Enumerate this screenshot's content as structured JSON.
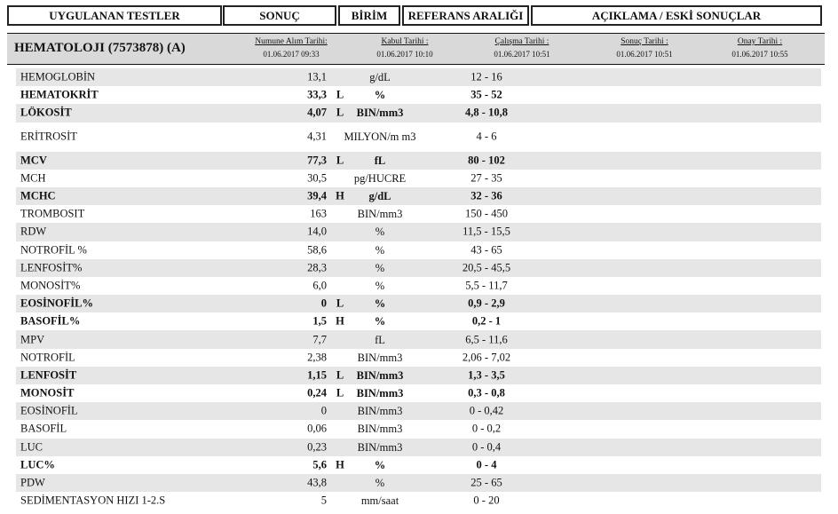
{
  "header": {
    "test": "UYGULANAN TESTLER",
    "result": "SONUÇ",
    "unit": "BİRİM",
    "reference": "REFERANS ARALIĞI",
    "notes": "AÇIKLAMA / ESKİ SONUÇLAR"
  },
  "panel": {
    "title": "HEMATOLOJI (7573878) (A)",
    "dates": [
      {
        "label": "Numune Alım Tarihi:",
        "value": "01.06.2017 09:33"
      },
      {
        "label": "Kabul Tarihi :",
        "value": "01.06.2017 10:10"
      },
      {
        "label": "Çalışma Tarihi :",
        "value": "01.06.2017 10:51"
      },
      {
        "label": "Sonuç Tarihi :",
        "value": "01.06.2017 10:51"
      },
      {
        "label": "Onay Tarihi :",
        "value": "01.06.2017 10:55"
      }
    ]
  },
  "rows": [
    {
      "name": "HEMOGLOBİN",
      "value": "13,1",
      "flag": "",
      "unit": "g/dL",
      "ref": "12 -  16"
    },
    {
      "name": "HEMATOKRİT",
      "value": "33,3",
      "flag": "L",
      "unit": "%",
      "ref": "35 -  52"
    },
    {
      "name": "LÖKOSİT",
      "value": "4,07",
      "flag": "L",
      "unit": "BIN/mm3",
      "ref": "4,8 -  10,8"
    },
    {
      "name": "ERİTROSİT",
      "value": "4,31",
      "flag": "",
      "unit": "MILYON/m m3",
      "ref": "4 -  6"
    },
    {
      "name": "MCV",
      "value": "77,3",
      "flag": "L",
      "unit": "fL",
      "ref": "80 -  102"
    },
    {
      "name": "MCH",
      "value": "30,5",
      "flag": "",
      "unit": "pg/HUCRE",
      "ref": "27 -  35"
    },
    {
      "name": "MCHC",
      "value": "39,4",
      "flag": "H",
      "unit": "g/dL",
      "ref": "32 -  36"
    },
    {
      "name": "TROMBOSIT",
      "value": "163",
      "flag": "",
      "unit": "BIN/mm3",
      "ref": "150 -  450"
    },
    {
      "name": "RDW",
      "value": "14,0",
      "flag": "",
      "unit": "%",
      "ref": "11,5 -  15,5"
    },
    {
      "name": "NOTROFİL %",
      "value": "58,6",
      "flag": "",
      "unit": "%",
      "ref": "43 -  65"
    },
    {
      "name": "LENFOSİT%",
      "value": "28,3",
      "flag": "",
      "unit": "%",
      "ref": "20,5 -  45,5"
    },
    {
      "name": "MONOSİT%",
      "value": "6,0",
      "flag": "",
      "unit": "%",
      "ref": "5,5 -  11,7"
    },
    {
      "name": "EOSİNOFİL%",
      "value": "0",
      "flag": "L",
      "unit": "%",
      "ref": "0,9 -  2,9"
    },
    {
      "name": "BASOFİL%",
      "value": "1,5",
      "flag": "H",
      "unit": "%",
      "ref": "0,2 -  1"
    },
    {
      "name": "MPV",
      "value": "7,7",
      "flag": "",
      "unit": "fL",
      "ref": "6,5 -  11,6"
    },
    {
      "name": "NOTROFİL",
      "value": "2,38",
      "flag": "",
      "unit": "BIN/mm3",
      "ref": "2,06 -  7,02"
    },
    {
      "name": "LENFOSİT",
      "value": "1,15",
      "flag": "L",
      "unit": "BIN/mm3",
      "ref": "1,3 -  3,5"
    },
    {
      "name": "MONOSİT",
      "value": "0,24",
      "flag": "L",
      "unit": "BIN/mm3",
      "ref": "0,3 -  0,8"
    },
    {
      "name": "EOSİNOFİL",
      "value": "0",
      "flag": "",
      "unit": "BIN/mm3",
      "ref": "0 -  0,42"
    },
    {
      "name": "BASOFİL",
      "value": "0,06",
      "flag": "",
      "unit": "BIN/mm3",
      "ref": "0 -  0,2"
    },
    {
      "name": "LUC",
      "value": "0,23",
      "flag": "",
      "unit": "BIN/mm3",
      "ref": "0 -  0,4"
    },
    {
      "name": "LUC%",
      "value": "5,6",
      "flag": "H",
      "unit": "%",
      "ref": "0 -  4"
    },
    {
      "name": "PDW",
      "value": "43,8",
      "flag": "",
      "unit": "%",
      "ref": "25 -  65"
    },
    {
      "name": "SEDİMENTASYON HIZI 1-2.S",
      "value": "5",
      "flag": "",
      "unit": "mm/saat",
      "ref": "0 -  20"
    }
  ]
}
